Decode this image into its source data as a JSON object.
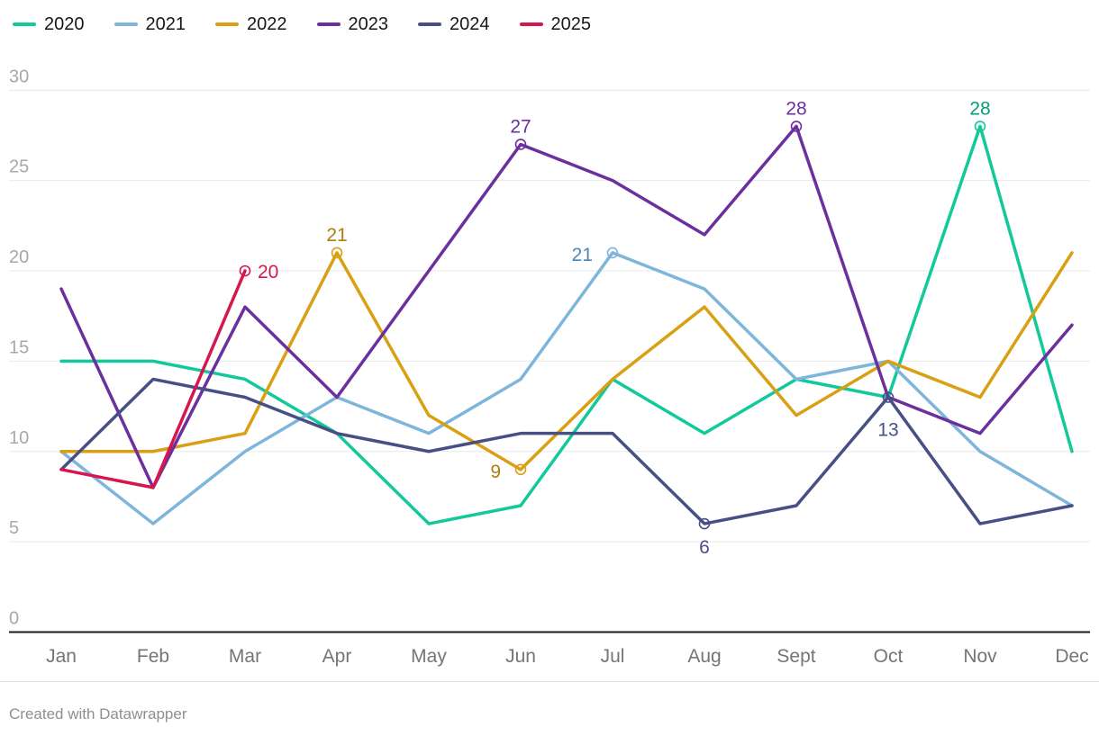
{
  "legend": {
    "items": [
      {
        "label": "2020",
        "color": "#12c99b"
      },
      {
        "label": "2021",
        "color": "#7eb6db"
      },
      {
        "label": "2022",
        "color": "#d9a013"
      },
      {
        "label": "2023",
        "color": "#6b2f9e"
      },
      {
        "label": "2024",
        "color": "#474f85"
      },
      {
        "label": "2025",
        "color": "#d6174d"
      }
    ]
  },
  "chart_data": {
    "type": "line",
    "title": "",
    "x_categories": [
      "Jan",
      "Feb",
      "Mar",
      "Apr",
      "May",
      "Jun",
      "Jul",
      "Aug",
      "Sept",
      "Oct",
      "Nov",
      "Dec"
    ],
    "y_axis": {
      "min": 0,
      "max": 30,
      "ticks": [
        0,
        5,
        10,
        15,
        20,
        25,
        30
      ]
    },
    "grid": true,
    "legend_position": "top-left",
    "series": [
      {
        "name": "2020",
        "color": "#12c99b",
        "label_color": "#069e78",
        "values": [
          15,
          15,
          14,
          11,
          6,
          7,
          14,
          11,
          14,
          13,
          28,
          10
        ]
      },
      {
        "name": "2021",
        "color": "#7eb6db",
        "label_color": "#4a87b2",
        "values": [
          10,
          6,
          10,
          13,
          11,
          14,
          21,
          19,
          14,
          15,
          10,
          7
        ]
      },
      {
        "name": "2022",
        "color": "#d9a013",
        "label_color": "#b07c0a",
        "values": [
          10,
          10,
          11,
          21,
          12,
          9,
          14,
          18,
          12,
          15,
          13,
          21
        ]
      },
      {
        "name": "2023",
        "color": "#6b2f9e",
        "label_color": "#6b2f9e",
        "values": [
          19,
          8,
          18,
          13,
          20,
          27,
          25,
          22,
          28,
          13,
          11,
          17
        ]
      },
      {
        "name": "2024",
        "color": "#474f85",
        "label_color": "#474f85",
        "values": [
          9,
          14,
          13,
          11,
          10,
          11,
          11,
          6,
          7,
          13,
          6,
          7
        ]
      },
      {
        "name": "2025",
        "color": "#d6174d",
        "label_color": "#d6174d",
        "values": [
          9,
          8,
          20,
          null,
          null,
          null,
          null,
          null,
          null,
          null,
          null,
          null
        ]
      }
    ],
    "point_labels": [
      {
        "series": "2022",
        "month": "Apr",
        "value": 21,
        "position": "above"
      },
      {
        "series": "2022",
        "month": "Jun",
        "value": 9,
        "position": "left"
      },
      {
        "series": "2023",
        "month": "Jun",
        "value": 27,
        "position": "above"
      },
      {
        "series": "2023",
        "month": "Sept",
        "value": 28,
        "position": "above"
      },
      {
        "series": "2021",
        "month": "Jul",
        "value": 21,
        "position": "left"
      },
      {
        "series": "2020",
        "month": "Nov",
        "value": 28,
        "position": "above"
      },
      {
        "series": "2024",
        "month": "Aug",
        "value": 6,
        "position": "below"
      },
      {
        "series": "2024",
        "month": "Oct",
        "value": 13,
        "position": "below-far"
      },
      {
        "series": "2025",
        "month": "Mar",
        "value": 20,
        "position": "right"
      }
    ]
  },
  "footer": {
    "credit": "Created with Datawrapper"
  },
  "colors": {
    "background": "#ffffff",
    "grid": "#e9e9e9",
    "baseline": "#1a1a1a",
    "y_tick_label": "#a8a8a8",
    "x_tick_label": "#757575",
    "legend_text": "#18181b",
    "footer_text": "#8f8f8f"
  }
}
